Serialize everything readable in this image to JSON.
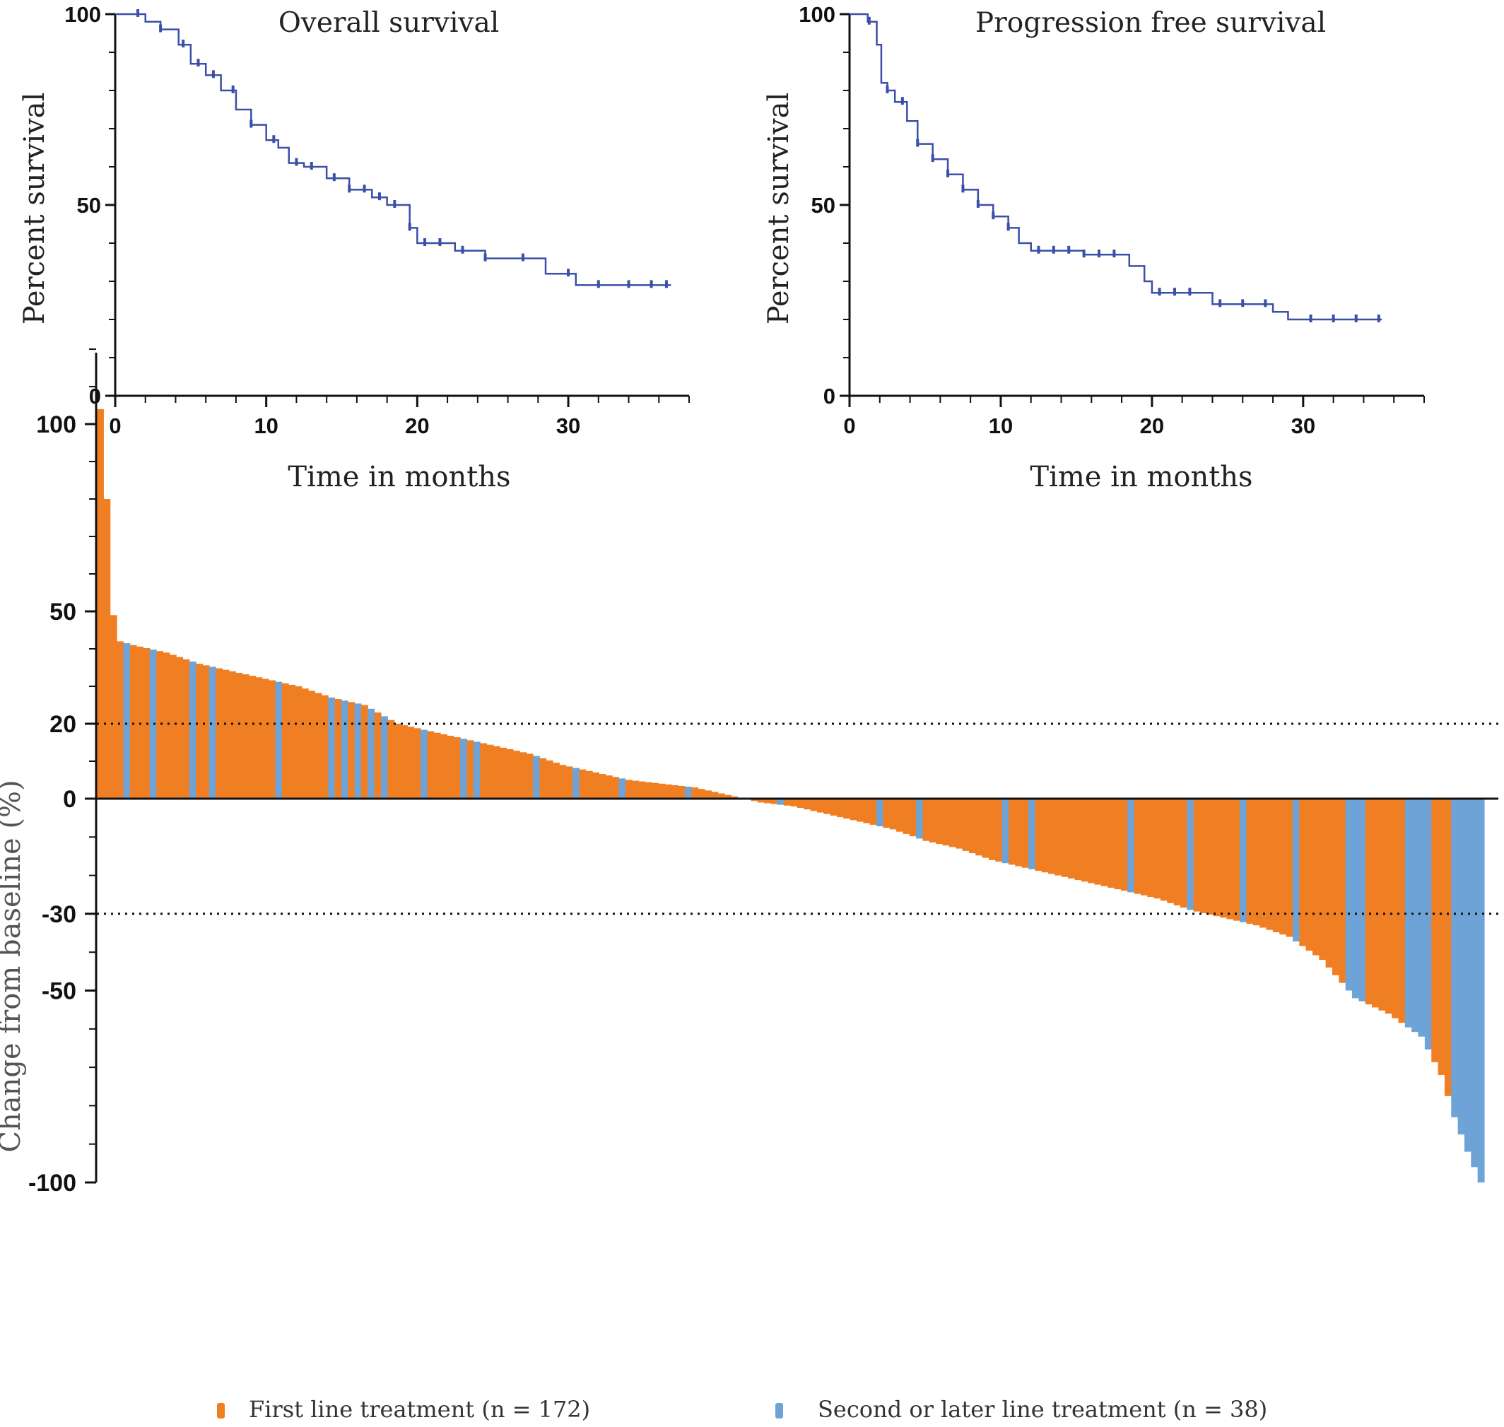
{
  "colors": {
    "km_line": "#3a4fa8",
    "first_line": "#f07f24",
    "second_line": "#6ea3d8",
    "axis": "#111111",
    "text": "#222222"
  },
  "chart_data": [
    {
      "type": "line",
      "title": "Overall survival",
      "xlabel": "Time in months",
      "ylabel": "Percent survival",
      "xlim": [
        0,
        38
      ],
      "ylim": [
        0,
        100
      ],
      "x_ticks": [
        "0",
        "10",
        "20",
        "30"
      ],
      "y_ticks": [
        "0",
        "50",
        "100"
      ],
      "series": [
        {
          "name": "Overall survival",
          "x": [
            0,
            1.3,
            2.0,
            3.0,
            4.2,
            5.0,
            6.0,
            7.0,
            8.0,
            9.0,
            10.0,
            10.8,
            11.5,
            12.5,
            14.0,
            15.5,
            17.0,
            18.0,
            18.8,
            19.5,
            20.0,
            22.5,
            24.5,
            27.5,
            28.5,
            30.0,
            30.5,
            36.8
          ],
          "y": [
            100,
            100,
            98,
            96,
            92,
            87,
            84,
            80,
            75,
            71,
            67,
            65,
            61,
            60,
            57,
            54,
            52,
            50,
            50,
            44,
            40,
            38,
            36,
            36,
            32,
            32,
            29,
            29
          ],
          "censor_x": [
            1.5,
            3.0,
            4.5,
            5.5,
            6.5,
            7.8,
            9.0,
            10.5,
            12.0,
            13.0,
            14.5,
            15.5,
            16.5,
            17.5,
            18.5,
            19.5,
            20.5,
            21.5,
            23.0,
            24.5,
            27.0,
            30.0,
            32.0,
            34.0,
            35.5,
            36.5
          ]
        }
      ]
    },
    {
      "type": "line",
      "title": "Progression free survival",
      "xlabel": "Time in months",
      "ylabel": "Percent survival",
      "xlim": [
        0,
        38
      ],
      "ylim": [
        0,
        100
      ],
      "x_ticks": [
        "0",
        "10",
        "20",
        "30"
      ],
      "y_ticks": [
        "0",
        "50",
        "100"
      ],
      "series": [
        {
          "name": "Progression free survival",
          "x": [
            0,
            1.2,
            1.8,
            2.1,
            2.5,
            3.0,
            3.8,
            4.5,
            5.5,
            6.5,
            7.5,
            8.5,
            9.5,
            10.5,
            11.2,
            12.0,
            15.5,
            18.5,
            19.5,
            20.0,
            24.0,
            28.0,
            29.0,
            35.2
          ],
          "y": [
            100,
            98,
            92,
            82,
            80,
            77,
            72,
            66,
            62,
            58,
            54,
            50,
            47,
            44,
            40,
            38,
            37,
            34,
            30,
            27,
            24,
            22,
            20,
            20
          ],
          "censor_x": [
            1.3,
            2.5,
            3.5,
            4.5,
            5.5,
            6.5,
            7.5,
            8.5,
            9.5,
            10.5,
            12.5,
            13.5,
            14.5,
            15.5,
            16.5,
            17.5,
            20.5,
            21.5,
            22.5,
            24.5,
            26.0,
            27.5,
            30.5,
            32.0,
            33.5,
            35.0
          ]
        }
      ]
    },
    {
      "type": "bar",
      "ylabel": "Change from baseline (%)",
      "ylim": [
        -100,
        120
      ],
      "y_ticks": [
        100,
        50,
        20,
        0,
        -30,
        -50,
        -100
      ],
      "y_tick_labels": [
        "100",
        "50",
        "20",
        "0",
        "-30",
        "-50",
        "-100"
      ],
      "reference_lines": [
        20,
        -30
      ],
      "n_bars": 210,
      "series": [
        {
          "name": "First line treatment (n = 172)",
          "legend_label": "First line treatment (n = 172)",
          "category": 0
        },
        {
          "name": "Second or later line treatment (n = 38)",
          "legend_label": "Second or later line treatment (n = 38)",
          "category": 1,
          "bar_indices": [
            4,
            8,
            14,
            17,
            27,
            35,
            37,
            39,
            41,
            43,
            49,
            55,
            57,
            66,
            72,
            79,
            89,
            103,
            118,
            124,
            137,
            141,
            156,
            165,
            173,
            181,
            189,
            190,
            191,
            198,
            199,
            200,
            201,
            205,
            206,
            207,
            208,
            209
          ]
        }
      ],
      "value_profile": {
        "index": [
          0,
          1,
          2,
          3,
          5,
          10,
          15,
          20,
          25,
          30,
          35,
          40,
          45,
          50,
          55,
          60,
          65,
          70,
          75,
          80,
          85,
          90,
          95,
          100,
          105,
          110,
          115,
          120,
          125,
          130,
          135,
          140,
          145,
          150,
          155,
          160,
          165,
          170,
          175,
          180,
          185,
          190,
          195,
          200,
          203,
          205,
          207,
          209
        ],
        "value": [
          104,
          80,
          49,
          42,
          41,
          39,
          36,
          34,
          32,
          30,
          27,
          25,
          20,
          18,
          16,
          14,
          12,
          9,
          7,
          5,
          4,
          3,
          1,
          -1,
          -2,
          -4,
          -6,
          -8,
          -11,
          -13,
          -16,
          -18,
          -20,
          -22,
          -24,
          -26,
          -29,
          -31,
          -33,
          -36,
          -42,
          -52,
          -56,
          -62,
          -72,
          -83,
          -92,
          -100
        ]
      }
    }
  ],
  "legend": {
    "first_line_label": "First line treatment (n = 172)",
    "second_line_label": "Second or later line treatment (n = 38)"
  }
}
